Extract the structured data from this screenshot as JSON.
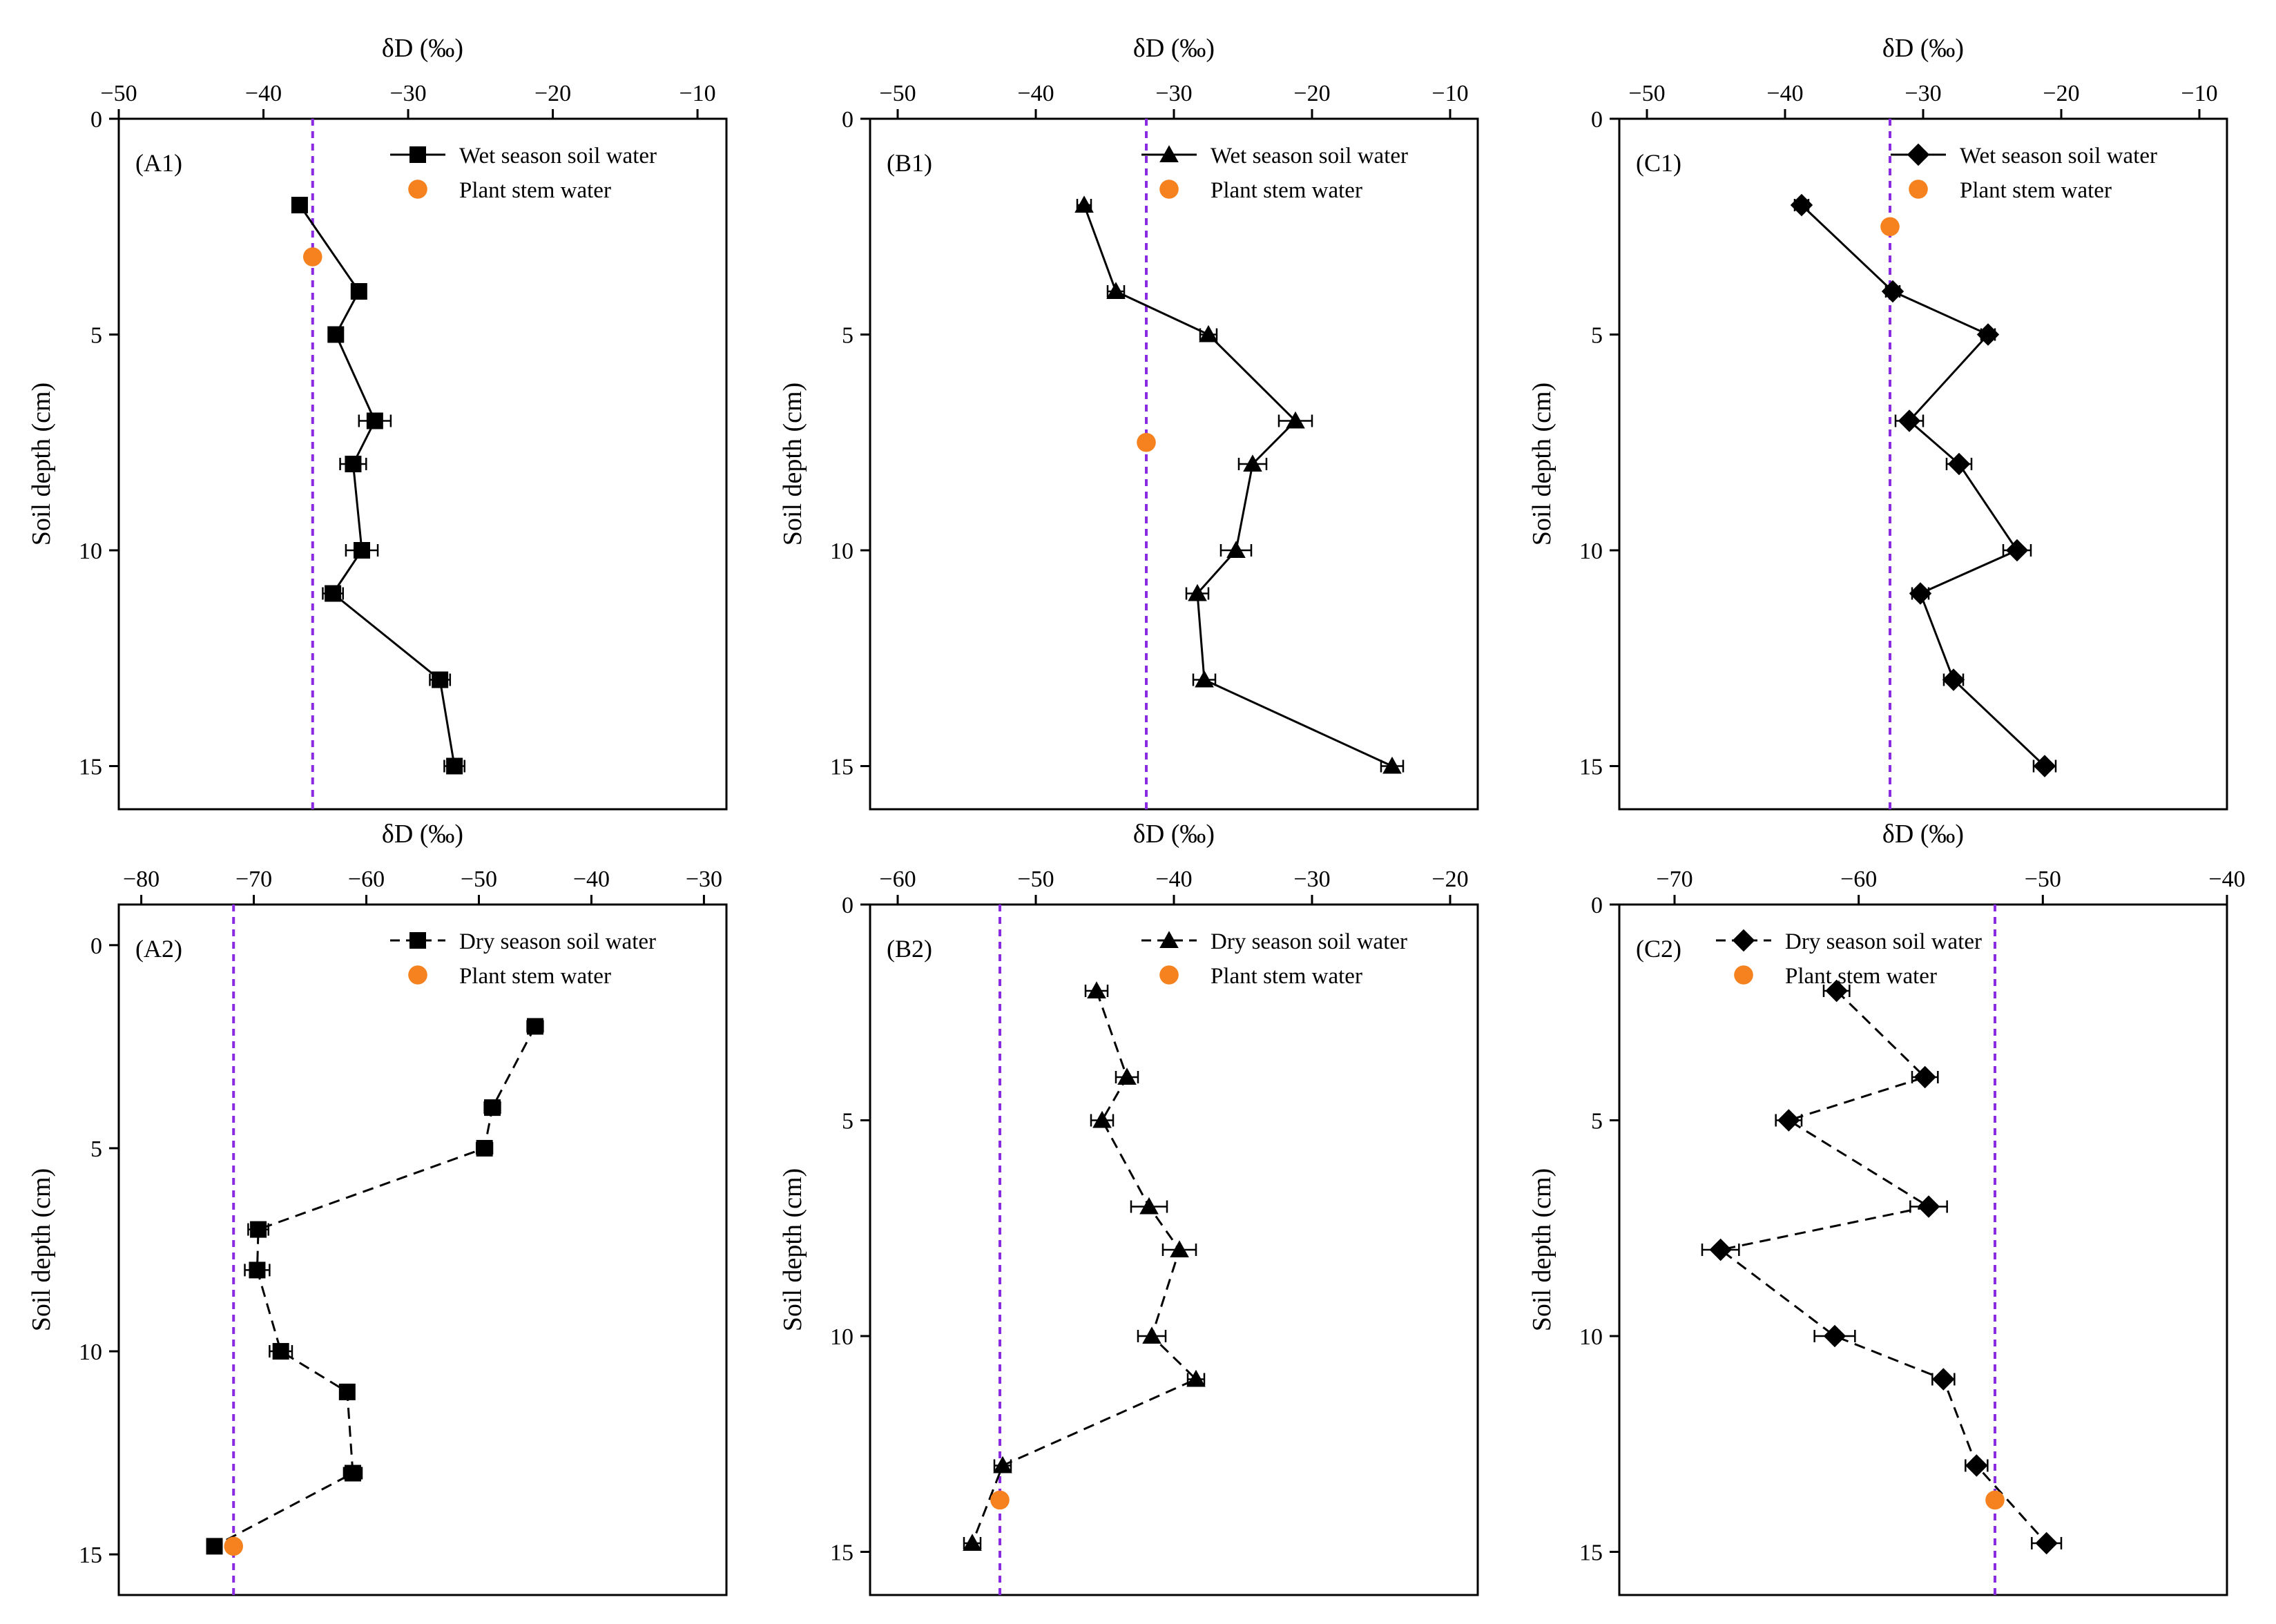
{
  "chart_data": [
    {
      "type": "line",
      "panel_label": "(A1)",
      "xlabel": "δD (‰)",
      "ylabel": "Soil depth (cm)",
      "xlim": [
        -50,
        -8
      ],
      "ylim": [
        0,
        16
      ],
      "xticks": [
        -50,
        -40,
        -30,
        -20,
        -10
      ],
      "xtick_labels": [
        "−50",
        "−40",
        "−30",
        "−20",
        "−10"
      ],
      "yticks": [
        0,
        5,
        10,
        15
      ],
      "ytick_labels": [
        "0",
        "5",
        "10",
        "15"
      ],
      "legend_position": "top-right",
      "series": [
        {
          "name": "Wet season soil water",
          "marker": "square",
          "line": "solid",
          "points": [
            [
              -37.5,
              2
            ],
            [
              -33.4,
              4
            ],
            [
              -35,
              5
            ],
            [
              -32.3,
              7
            ],
            [
              -33.8,
              8
            ],
            [
              -33.2,
              10
            ],
            [
              -35.2,
              11
            ],
            [
              -27.8,
              13
            ],
            [
              -26.8,
              15
            ]
          ],
          "errors": [
            0.5,
            0.5,
            0.5,
            1.1,
            0.9,
            1.1,
            0.7,
            0.7,
            0.7
          ]
        },
        {
          "name": "Plant stem water",
          "marker": "circle",
          "color": "#f5821f",
          "points": [
            [
              -36.6,
              3.2
            ]
          ]
        }
      ],
      "reference_line_x": -36.6
    },
    {
      "type": "line",
      "panel_label": "(B1)",
      "xlabel": "δD (‰)",
      "ylabel": "Soil depth (cm)",
      "xlim": [
        -52,
        -8
      ],
      "ylim": [
        0,
        16
      ],
      "xticks": [
        -50,
        -40,
        -30,
        -20,
        -10
      ],
      "xtick_labels": [
        "−50",
        "−40",
        "−30",
        "−20",
        "−10"
      ],
      "yticks": [
        0,
        5,
        10,
        15
      ],
      "ytick_labels": [
        "0",
        "5",
        "10",
        "15"
      ],
      "legend_position": "top-right",
      "series": [
        {
          "name": "Wet season soil water",
          "marker": "triangle",
          "line": "solid",
          "points": [
            [
              -36.5,
              2
            ],
            [
              -34.2,
              4
            ],
            [
              -27.5,
              5
            ],
            [
              -21.2,
              7
            ],
            [
              -24.3,
              8
            ],
            [
              -25.5,
              10
            ],
            [
              -28.3,
              11
            ],
            [
              -27.8,
              13
            ],
            [
              -14.2,
              15
            ]
          ],
          "errors": [
            0.5,
            0.6,
            0.6,
            1.2,
            1.0,
            1.1,
            0.8,
            0.8,
            0.8
          ]
        },
        {
          "name": "Plant stem water",
          "marker": "circle",
          "color": "#f5821f",
          "points": [
            [
              -32,
              7.5
            ]
          ]
        }
      ],
      "reference_line_x": -32
    },
    {
      "type": "line",
      "panel_label": "(C1)",
      "xlabel": "δD (‰)",
      "ylabel": "Soil depth (cm)",
      "xlim": [
        -52,
        -8
      ],
      "ylim": [
        0,
        16
      ],
      "xticks": [
        -50,
        -40,
        -30,
        -20,
        -10
      ],
      "xtick_labels": [
        "−50",
        "−40",
        "−30",
        "−20",
        "−10"
      ],
      "yticks": [
        0,
        5,
        10,
        15
      ],
      "ytick_labels": [
        "0",
        "5",
        "10",
        "15"
      ],
      "legend_position": "top-right",
      "series": [
        {
          "name": "Wet season soil water",
          "marker": "diamond",
          "line": "solid",
          "points": [
            [
              -38.8,
              2
            ],
            [
              -32.2,
              4
            ],
            [
              -25.3,
              5
            ],
            [
              -31,
              7
            ],
            [
              -27.4,
              8
            ],
            [
              -23.2,
              10
            ],
            [
              -30.2,
              11
            ],
            [
              -27.8,
              13
            ],
            [
              -21.2,
              15
            ]
          ],
          "errors": [
            0.5,
            0.5,
            0.5,
            1.0,
            0.9,
            1.0,
            0.6,
            0.7,
            0.8
          ]
        },
        {
          "name": "Plant stem water",
          "marker": "circle",
          "color": "#f5821f",
          "points": [
            [
              -32.4,
              2.5
            ]
          ]
        }
      ],
      "reference_line_x": -32.4
    },
    {
      "type": "line",
      "panel_label": "(A2)",
      "xlabel": "δD (‰)",
      "ylabel": "Soil depth (cm)",
      "xlim": [
        -82,
        -28
      ],
      "ylim": [
        -1,
        16
      ],
      "xticks": [
        -80,
        -70,
        -60,
        -50,
        -40,
        -30
      ],
      "xtick_labels": [
        "−80",
        "−70",
        "−60",
        "−50",
        "−40",
        "−30"
      ],
      "yticks": [
        0,
        5,
        10,
        15
      ],
      "ytick_labels": [
        "0",
        "5",
        "10",
        "15"
      ],
      "legend_position": "top-right",
      "series": [
        {
          "name": "Dry season soil water",
          "marker": "square",
          "line": "dashed",
          "points": [
            [
              -45,
              2
            ],
            [
              -48.8,
              4
            ],
            [
              -49.5,
              5
            ],
            [
              -69.6,
              7
            ],
            [
              -69.7,
              8
            ],
            [
              -67.6,
              10
            ],
            [
              -61.7,
              11
            ],
            [
              -61.2,
              13
            ],
            [
              -73.5,
              14.8
            ]
          ],
          "errors": [
            0.7,
            0.7,
            0.7,
            0.9,
            1.1,
            1.0,
            0.6,
            0.8,
            0.6
          ]
        },
        {
          "name": "Plant stem water",
          "marker": "circle",
          "color": "#f5821f",
          "points": [
            [
              -71.8,
              14.8
            ]
          ]
        }
      ],
      "reference_line_x": -71.8
    },
    {
      "type": "line",
      "panel_label": "(B2)",
      "xlabel": "δD (‰)",
      "ylabel": "Soil depth (cm)",
      "xlim": [
        -62,
        -18
      ],
      "ylim": [
        0,
        16
      ],
      "xticks": [
        -60,
        -50,
        -40,
        -30,
        -20
      ],
      "xtick_labels": [
        "−60",
        "−50",
        "−40",
        "−30",
        "−20"
      ],
      "yticks": [
        0,
        5,
        10,
        15
      ],
      "ytick_labels": [
        "0",
        "5",
        "10",
        "15"
      ],
      "legend_position": "top-right",
      "series": [
        {
          "name": "Dry season soil water",
          "marker": "triangle",
          "line": "dashed",
          "points": [
            [
              -45.6,
              2
            ],
            [
              -43.4,
              4
            ],
            [
              -45.2,
              5
            ],
            [
              -41.8,
              7
            ],
            [
              -39.6,
              8
            ],
            [
              -41.6,
              10
            ],
            [
              -38.4,
              11
            ],
            [
              -52.4,
              13
            ],
            [
              -54.6,
              14.8
            ]
          ],
          "errors": [
            0.8,
            0.8,
            0.8,
            1.3,
            1.2,
            1.0,
            0.6,
            0.6,
            0.6
          ]
        },
        {
          "name": "Plant stem water",
          "marker": "circle",
          "color": "#f5821f",
          "points": [
            [
              -52.6,
              13.8
            ]
          ]
        }
      ],
      "reference_line_x": -52.6
    },
    {
      "type": "line",
      "panel_label": "(C2)",
      "xlabel": "δD (‰)",
      "ylabel": "Soil depth (cm)",
      "xlim": [
        -73,
        -40
      ],
      "ylim": [
        0,
        16
      ],
      "xticks": [
        -70,
        -60,
        -50,
        -40
      ],
      "xtick_labels": [
        "−70",
        "−60",
        "−50",
        "−40"
      ],
      "yticks": [
        0,
        5,
        10,
        15
      ],
      "ytick_labels": [
        "0",
        "5",
        "10",
        "15"
      ],
      "legend_position": "top-left",
      "series": [
        {
          "name": "Dry season soil water",
          "marker": "diamond",
          "line": "dashed",
          "points": [
            [
              -61.2,
              2
            ],
            [
              -56.4,
              4
            ],
            [
              -63.8,
              5
            ],
            [
              -56.2,
              7
            ],
            [
              -67.5,
              8
            ],
            [
              -61.3,
              10
            ],
            [
              -55.4,
              11
            ],
            [
              -53.6,
              13
            ],
            [
              -49.8,
              14.8
            ]
          ],
          "errors": [
            0.7,
            0.7,
            0.7,
            1.0,
            1.0,
            1.1,
            0.6,
            0.6,
            0.8
          ]
        },
        {
          "name": "Plant stem water",
          "marker": "circle",
          "color": "#f5821f",
          "points": [
            [
              -52.6,
              13.8
            ]
          ]
        }
      ],
      "reference_line_x": -52.6
    }
  ],
  "colors": {
    "axis": "#000000",
    "series": "#000000",
    "stem_water": "#f5821f",
    "reference_line": "#8a2be2"
  }
}
